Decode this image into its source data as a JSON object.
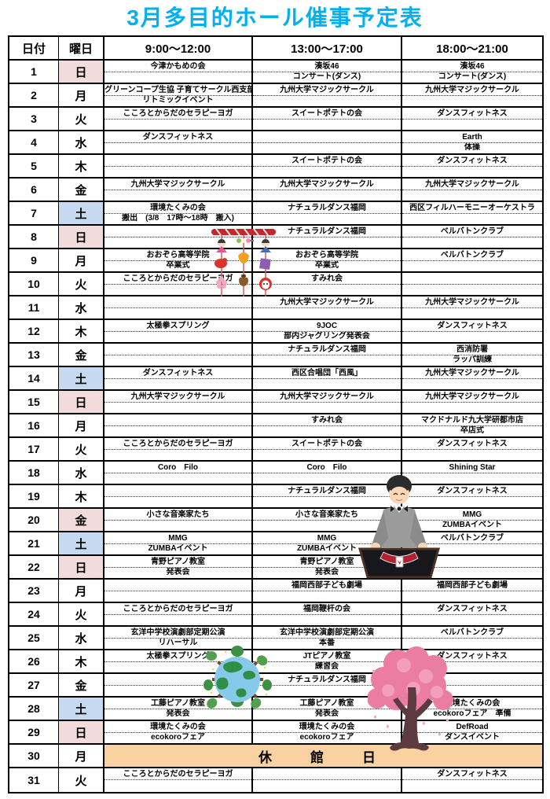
{
  "title": "3月多目的ホール催事予定表",
  "colors": {
    "title_color": "#00B0F0",
    "sunday_holiday_bg": "#F2DCDB",
    "saturday_bg": "#C5D9F1",
    "closed_day_bg": "#FAD2A2",
    "border": "#000000"
  },
  "icons": {
    "hina_mobile": "hina-mobile-illustration",
    "magician": "magician-illustration",
    "earth": "earth-illustration",
    "cherry_tree": "cherry-tree-illustration"
  },
  "table": {
    "headers": [
      "日付",
      "曜日",
      "9:00～12:00",
      "13:00～17:00",
      "18:00～21:00"
    ],
    "closed_label": "休　館　日",
    "rows": [
      {
        "date": "1",
        "day": "日",
        "type": "sun",
        "slots": [
          [
            "今津かもめの会",
            ""
          ],
          [
            "湊坂46",
            "コンサート(ダンス)"
          ],
          [
            "湊坂46",
            "コンサート(ダンス)"
          ]
        ]
      },
      {
        "date": "2",
        "day": "月",
        "type": "wd",
        "slots": [
          [
            "グリーンコープ生協 子育てサークル西支部",
            "リトミックイベント"
          ],
          [
            "九州大学マジックサークル",
            ""
          ],
          [
            "九州大学マジックサークル",
            ""
          ]
        ]
      },
      {
        "date": "3",
        "day": "火",
        "type": "wd",
        "slots": [
          [
            "こころとからだのセラピーヨガ",
            ""
          ],
          [
            "スイートポテトの会",
            ""
          ],
          [
            "ダンスフィットネス",
            ""
          ]
        ]
      },
      {
        "date": "4",
        "day": "水",
        "type": "wd",
        "slots": [
          [
            "ダンスフィットネス",
            ""
          ],
          [
            "",
            ""
          ],
          [
            "Earth",
            "体操"
          ]
        ]
      },
      {
        "date": "5",
        "day": "木",
        "type": "wd",
        "slots": [
          [
            "",
            ""
          ],
          [
            "スイートポテトの会",
            ""
          ],
          [
            "ダンスフィットネス",
            ""
          ]
        ]
      },
      {
        "date": "6",
        "day": "金",
        "type": "wd",
        "slots": [
          [
            "九州大学マジックサークル",
            ""
          ],
          [
            "九州大学マジックサークル",
            ""
          ],
          [
            "九州大学マジックサークル",
            ""
          ]
        ]
      },
      {
        "date": "7",
        "day": "土",
        "type": "sat",
        "slots": [
          [
            "環境たくみの会",
            "搬出　(3/8　17時～18時　搬入)"
          ],
          [
            "ナチュラルダンス福岡",
            ""
          ],
          [
            "西区フィルハーモニーオーケストラ",
            ""
          ]
        ]
      },
      {
        "date": "8",
        "day": "日",
        "type": "sun",
        "slots": [
          [
            "",
            ""
          ],
          [
            "ナチュラルダンス福岡",
            ""
          ],
          [
            "ベルバトンクラブ",
            ""
          ]
        ]
      },
      {
        "date": "9",
        "day": "月",
        "type": "wd",
        "slots": [
          [
            "おおぞら高等学院",
            "卒業式"
          ],
          [
            "おおぞら高等学院",
            "卒業式"
          ],
          [
            "ベルバトンクラブ",
            ""
          ]
        ]
      },
      {
        "date": "10",
        "day": "火",
        "type": "wd",
        "slots": [
          [
            "こころとからだのセラピーヨガ",
            ""
          ],
          [
            "すみれ会",
            ""
          ],
          [
            "",
            ""
          ]
        ]
      },
      {
        "date": "11",
        "day": "水",
        "type": "wd",
        "slots": [
          [
            "",
            ""
          ],
          [
            "九州大学マジックサークル",
            ""
          ],
          [
            "九州大学マジックサークル",
            ""
          ]
        ]
      },
      {
        "date": "12",
        "day": "木",
        "type": "wd",
        "slots": [
          [
            "太極拳スプリング",
            ""
          ],
          [
            "9JOC",
            "部内ジャグリング発表会"
          ],
          [
            "ダンスフィットネス",
            ""
          ]
        ]
      },
      {
        "date": "13",
        "day": "金",
        "type": "wd",
        "slots": [
          [
            "",
            ""
          ],
          [
            "ナチュラルダンス福岡",
            ""
          ],
          [
            "西消防署",
            "ラッパ訓練"
          ]
        ]
      },
      {
        "date": "14",
        "day": "土",
        "type": "sat",
        "slots": [
          [
            "ダンスフィットネス",
            ""
          ],
          [
            "西区合唱団「西風」",
            ""
          ],
          [
            "九州大学マジックサークル",
            ""
          ]
        ]
      },
      {
        "date": "15",
        "day": "日",
        "type": "sun",
        "slots": [
          [
            "九州大学マジックサークル",
            ""
          ],
          [
            "九州大学マジックサークル",
            ""
          ],
          [
            "九州大学マジックサークル",
            ""
          ]
        ]
      },
      {
        "date": "16",
        "day": "月",
        "type": "wd",
        "slots": [
          [
            "",
            ""
          ],
          [
            "すみれ会",
            ""
          ],
          [
            "マクドナルド九大学研都市店",
            "卒店式"
          ]
        ]
      },
      {
        "date": "17",
        "day": "火",
        "type": "wd",
        "slots": [
          [
            "こころとからだのセラピーヨガ",
            ""
          ],
          [
            "スイートポテトの会",
            ""
          ],
          [
            "ダンスフィットネス",
            ""
          ]
        ]
      },
      {
        "date": "18",
        "day": "水",
        "type": "wd",
        "slots": [
          [
            "Coro　Filo",
            ""
          ],
          [
            "Coro　Filo",
            ""
          ],
          [
            "Shining Star",
            ""
          ]
        ]
      },
      {
        "date": "19",
        "day": "木",
        "type": "wd",
        "slots": [
          [
            "",
            ""
          ],
          [
            "ナチュラルダンス福岡",
            ""
          ],
          [
            "ダンスフィットネス",
            ""
          ]
        ]
      },
      {
        "date": "20",
        "day": "金",
        "type": "hol",
        "slots": [
          [
            "小さな音楽家たち",
            ""
          ],
          [
            "小さな音楽家たち",
            ""
          ],
          [
            "MMG",
            "ZUMBAイベント"
          ]
        ]
      },
      {
        "date": "21",
        "day": "土",
        "type": "sat",
        "slots": [
          [
            "MMG",
            "ZUMBAイベント"
          ],
          [
            "MMG",
            "ZUMBAイベント"
          ],
          [
            "ベルバトンクラブ",
            ""
          ]
        ]
      },
      {
        "date": "22",
        "day": "日",
        "type": "sun",
        "slots": [
          [
            "青野ピアノ教室",
            "発表会"
          ],
          [
            "青野ピアノ教室",
            "発表会"
          ],
          [
            "",
            ""
          ]
        ]
      },
      {
        "date": "23",
        "day": "月",
        "type": "wd",
        "slots": [
          [
            "",
            ""
          ],
          [
            "福岡西部子ども劇場",
            ""
          ],
          [
            "福岡西部子ども劇場",
            ""
          ]
        ]
      },
      {
        "date": "24",
        "day": "火",
        "type": "wd",
        "slots": [
          [
            "こころとからだのセラピーヨガ",
            ""
          ],
          [
            "福岡鞭杆の会",
            ""
          ],
          [
            "ダンスフィットネス",
            ""
          ]
        ]
      },
      {
        "date": "25",
        "day": "水",
        "type": "wd",
        "slots": [
          [
            "玄洋中学校演劇部定期公演",
            "リハーサル"
          ],
          [
            "玄洋中学校演劇部定期公演",
            "本番"
          ],
          [
            "ベルバトンクラブ",
            ""
          ]
        ]
      },
      {
        "date": "26",
        "day": "木",
        "type": "wd",
        "slots": [
          [
            "太極拳スプリング",
            ""
          ],
          [
            "JTピアノ教室",
            "練習会"
          ],
          [
            "ダンスフィットネス",
            ""
          ]
        ]
      },
      {
        "date": "27",
        "day": "金",
        "type": "wd",
        "slots": [
          [
            "",
            ""
          ],
          [
            "ナチュラルダンス福岡",
            ""
          ],
          [
            "",
            ""
          ]
        ]
      },
      {
        "date": "28",
        "day": "土",
        "type": "sat",
        "slots": [
          [
            "工藤ピアノ教室",
            "発表会"
          ],
          [
            "工藤ピアノ教室",
            "発表会"
          ],
          [
            "環境たくみの会",
            "ecokoroフェア　準備"
          ]
        ]
      },
      {
        "date": "29",
        "day": "日",
        "type": "sun",
        "slots": [
          [
            "環境たくみの会",
            "ecokoroフェア"
          ],
          [
            "環境たくみの会",
            "ecokoroフェア"
          ],
          [
            "DefRoad",
            "ダンスイベント"
          ]
        ]
      },
      {
        "date": "30",
        "day": "月",
        "type": "closed"
      },
      {
        "date": "31",
        "day": "火",
        "type": "wd",
        "slots": [
          [
            "こころとからだのセラピーヨガ",
            ""
          ],
          [
            "",
            ""
          ],
          [
            "ダンスフィットネス",
            ""
          ]
        ]
      }
    ]
  }
}
